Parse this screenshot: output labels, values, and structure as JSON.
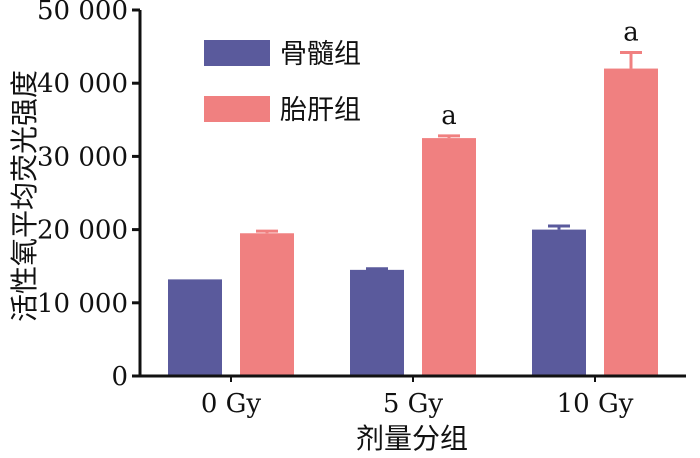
{
  "chart_data": {
    "type": "bar",
    "xlabel": "剂量分组",
    "ylabel": "活性氧平均荧光强度",
    "categories": [
      "0 Gy",
      "5 Gy",
      "10 Gy"
    ],
    "ylim": [
      0,
      50000
    ],
    "yticks": [
      0,
      10000,
      20000,
      30000,
      40000,
      50000
    ],
    "ytick_labels": [
      "0",
      "10 000",
      "20 000",
      "30 000",
      "40 000",
      "50 000"
    ],
    "series": [
      {
        "name": "骨髓组",
        "color": "#5a5a9c",
        "values": [
          13200,
          14500,
          20000
        ],
        "errors": [
          0,
          150,
          500
        ]
      },
      {
        "name": "胎肝组",
        "color": "#f08080",
        "values": [
          19500,
          32500,
          42000
        ],
        "errors": [
          300,
          300,
          2200
        ]
      }
    ],
    "annotations": [
      {
        "series": 1,
        "category": 1,
        "text": "a"
      },
      {
        "series": 1,
        "category": 2,
        "text": "a"
      }
    ],
    "legend": "top-left",
    "grid": false
  }
}
